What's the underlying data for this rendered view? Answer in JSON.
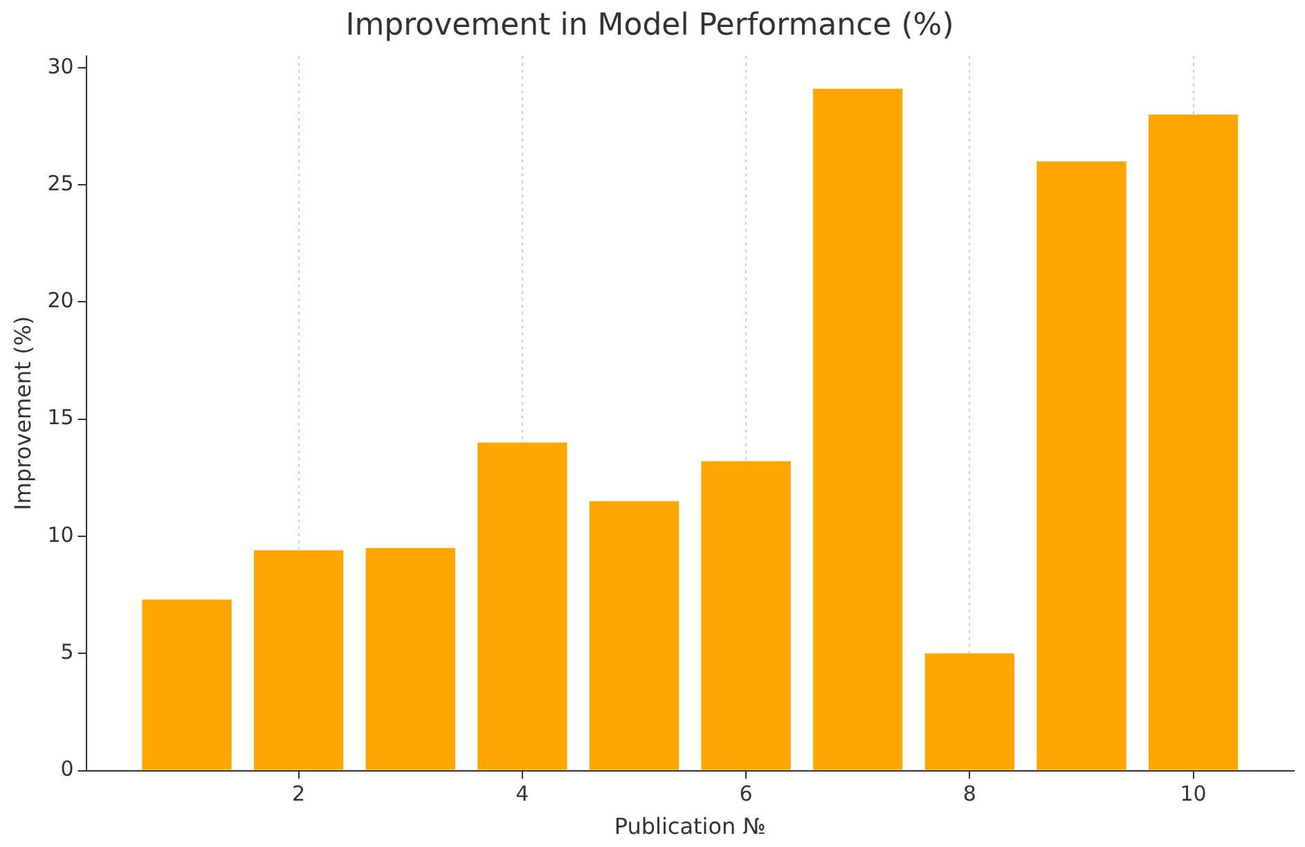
{
  "chart_data": {
    "type": "bar",
    "title": "Improvement in Model Performance (%)",
    "xlabel": "Publication №",
    "ylabel": "Improvement (%)",
    "x": [
      1,
      2,
      3,
      4,
      5,
      6,
      7,
      8,
      9,
      10
    ],
    "values": [
      7.3,
      9.4,
      9.5,
      14.0,
      11.5,
      13.2,
      29.1,
      5.0,
      26.0,
      28.0
    ],
    "color": "#ffa500",
    "xlim": [
      0.1,
      10.9
    ],
    "xticks": [
      2,
      4,
      6,
      8,
      10
    ],
    "ylim": [
      0,
      30.5
    ],
    "yticks": [
      0,
      5,
      10,
      15,
      20,
      25,
      30
    ],
    "grid": "x",
    "legend": false
  }
}
